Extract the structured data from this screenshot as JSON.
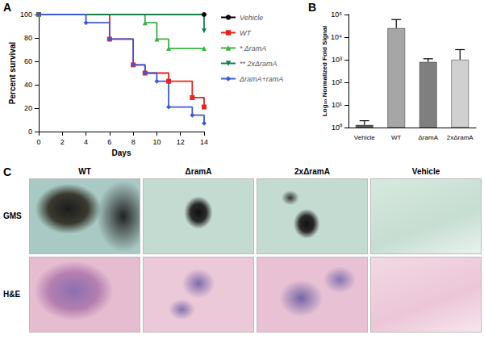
{
  "chart_data": [
    {
      "panel": "A",
      "type": "line",
      "x_label": "Days",
      "y_label": "Percent survival",
      "xlim": [
        0,
        14
      ],
      "xticks": [
        0,
        2,
        4,
        6,
        8,
        10,
        12,
        14
      ],
      "ylim": [
        0,
        100
      ],
      "yticks": [
        0,
        20,
        40,
        60,
        80,
        100
      ],
      "grid": false,
      "legend": "right",
      "line_style": "step",
      "annotations": [
        {
          "text": "*",
          "series": "ΔramA"
        },
        {
          "text": "**",
          "series": "2xΔramA"
        }
      ],
      "series": [
        {
          "name": "Vehicle",
          "color": "#000000",
          "marker": "circle",
          "x": [
            0,
            14
          ],
          "values": [
            100,
            100
          ]
        },
        {
          "name": "WT",
          "color": "#e8231f",
          "marker": "square",
          "x": [
            0,
            6,
            8,
            9,
            11,
            13,
            14
          ],
          "values": [
            100,
            79,
            57,
            50,
            43,
            29,
            21
          ]
        },
        {
          "name": "ΔramA",
          "color": "#3cb043",
          "marker": "triangle",
          "x": [
            0,
            9,
            10,
            11,
            14
          ],
          "values": [
            100,
            93,
            79,
            71,
            71
          ]
        },
        {
          "name": "2xΔramA",
          "color": "#17804a",
          "marker": "triangle-down",
          "x": [
            0,
            14
          ],
          "values": [
            100,
            86
          ]
        },
        {
          "name": "ΔramA+ramA",
          "color": "#3b5bd6",
          "marker": "diamond",
          "x": [
            0,
            4,
            6,
            8,
            9,
            10,
            11,
            13,
            14
          ],
          "values": [
            100,
            93,
            79,
            57,
            50,
            43,
            21,
            14,
            7
          ]
        }
      ]
    },
    {
      "panel": "B",
      "type": "bar",
      "y_label": "Log₁₀ Normalized Fold Signal",
      "categories": [
        "Vehicle",
        "WT",
        "ΔramA",
        "2xΔramA"
      ],
      "values": [
        1.3,
        25000,
        800,
        1000
      ],
      "errors": [
        0.7,
        35000,
        300,
        1800
      ],
      "colors": [
        "#555555",
        "#a6a6a6",
        "#7f7f7f",
        "#d0d0d0"
      ],
      "log": "y",
      "grid": false,
      "ylim": [
        1,
        100000
      ],
      "yticks": [
        {
          "value": 1,
          "label": "10⁰"
        },
        {
          "value": 10,
          "label": "10¹"
        },
        {
          "value": 100,
          "label": "10²"
        },
        {
          "value": 1000,
          "label": "10³"
        },
        {
          "value": 10000,
          "label": "10⁴"
        },
        {
          "value": 100000,
          "label": "10⁵"
        }
      ]
    }
  ],
  "panel_c": {
    "panel": "C",
    "columns": [
      "WT",
      "ΔramA",
      "2xΔramA",
      "Vehicle"
    ],
    "rows": [
      "GMS",
      "H&E"
    ]
  }
}
